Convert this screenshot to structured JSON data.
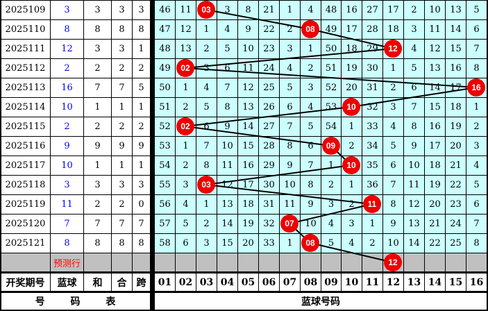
{
  "colors": {
    "grid_cell_bg": "#ccffff",
    "prediction_row_bg": "#c0c0c0",
    "ball_fill": "#ee0000",
    "ball_text": "#ffffff",
    "blue_value_text": "#0000ff",
    "prediction_label_text": "#ff0000",
    "trend_line": "#000000",
    "border": "#000000"
  },
  "left_table": {
    "headers": [
      "开奖期号",
      "蓝球",
      "和",
      "合",
      "跨"
    ],
    "footer_label": "号 码 表",
    "prediction_label": "预测行",
    "rows": [
      {
        "period": "2025109",
        "blue": "3",
        "he": "3",
        "hezhi": "3",
        "kua": "3"
      },
      {
        "period": "2025110",
        "blue": "8",
        "he": "8",
        "hezhi": "8",
        "kua": "8"
      },
      {
        "period": "2025111",
        "blue": "12",
        "he": "3",
        "hezhi": "3",
        "kua": "1"
      },
      {
        "period": "2025112",
        "blue": "2",
        "he": "2",
        "hezhi": "2",
        "kua": "2"
      },
      {
        "period": "2025113",
        "blue": "16",
        "he": "7",
        "hezhi": "7",
        "kua": "5"
      },
      {
        "period": "2025114",
        "blue": "10",
        "he": "1",
        "hezhi": "1",
        "kua": "1"
      },
      {
        "period": "2025115",
        "blue": "2",
        "he": "2",
        "hezhi": "2",
        "kua": "2"
      },
      {
        "period": "2025116",
        "blue": "9",
        "he": "9",
        "hezhi": "9",
        "kua": "9"
      },
      {
        "period": "2025117",
        "blue": "10",
        "he": "1",
        "hezhi": "1",
        "kua": "1"
      },
      {
        "period": "2025118",
        "blue": "3",
        "he": "3",
        "hezhi": "3",
        "kua": "3"
      },
      {
        "period": "2025119",
        "blue": "11",
        "he": "2",
        "hezhi": "2",
        "kua": "0"
      },
      {
        "period": "2025120",
        "blue": "7",
        "he": "7",
        "hezhi": "7",
        "kua": "7"
      },
      {
        "period": "2025121",
        "blue": "8",
        "he": "8",
        "hezhi": "8",
        "kua": "8"
      }
    ]
  },
  "ball_grid": {
    "headers": [
      "01",
      "02",
      "03",
      "04",
      "05",
      "06",
      "07",
      "08",
      "09",
      "10",
      "11",
      "12",
      "13",
      "14",
      "15",
      "16"
    ],
    "footer_label": "蓝球号码",
    "rows": [
      {
        "cells": [
          "46",
          "11",
          "",
          "3",
          "8",
          "21",
          "1",
          "4",
          "48",
          "16",
          "27",
          "17",
          "2",
          "10",
          "13",
          "5"
        ],
        "ball_col": 3,
        "ball_label": "03"
      },
      {
        "cells": [
          "47",
          "12",
          "1",
          "4",
          "9",
          "22",
          "2",
          "",
          "49",
          "17",
          "28",
          "18",
          "3",
          "11",
          "14",
          "6"
        ],
        "ball_col": 8,
        "ball_label": "08"
      },
      {
        "cells": [
          "48",
          "13",
          "2",
          "5",
          "10",
          "23",
          "3",
          "1",
          "50",
          "18",
          "29",
          "",
          "4",
          "12",
          "15",
          "7"
        ],
        "ball_col": 12,
        "ball_label": "12"
      },
      {
        "cells": [
          "49",
          "",
          "3",
          "6",
          "11",
          "24",
          "4",
          "2",
          "51",
          "19",
          "30",
          "1",
          "5",
          "13",
          "16",
          "8"
        ],
        "ball_col": 2,
        "ball_label": "02"
      },
      {
        "cells": [
          "50",
          "1",
          "4",
          "7",
          "12",
          "25",
          "5",
          "3",
          "52",
          "20",
          "31",
          "2",
          "6",
          "14",
          "17",
          ""
        ],
        "ball_col": 16,
        "ball_label": "16"
      },
      {
        "cells": [
          "51",
          "2",
          "5",
          "8",
          "13",
          "26",
          "6",
          "4",
          "53",
          "",
          "32",
          "3",
          "7",
          "15",
          "18",
          "1"
        ],
        "ball_col": 10,
        "ball_label": "10"
      },
      {
        "cells": [
          "52",
          "",
          "6",
          "9",
          "14",
          "27",
          "7",
          "5",
          "54",
          "1",
          "33",
          "4",
          "8",
          "16",
          "19",
          "2"
        ],
        "ball_col": 2,
        "ball_label": "02"
      },
      {
        "cells": [
          "53",
          "1",
          "7",
          "10",
          "15",
          "28",
          "8",
          "6",
          "",
          "2",
          "34",
          "5",
          "9",
          "17",
          "20",
          "3"
        ],
        "ball_col": 9,
        "ball_label": "09"
      },
      {
        "cells": [
          "54",
          "2",
          "8",
          "11",
          "16",
          "29",
          "9",
          "7",
          "1",
          "",
          "35",
          "6",
          "10",
          "18",
          "21",
          "4"
        ],
        "ball_col": 10,
        "ball_label": "10"
      },
      {
        "cells": [
          "55",
          "3",
          "",
          "12",
          "17",
          "30",
          "10",
          "8",
          "2",
          "1",
          "36",
          "7",
          "11",
          "19",
          "22",
          "5"
        ],
        "ball_col": 3,
        "ball_label": "03"
      },
      {
        "cells": [
          "56",
          "4",
          "1",
          "13",
          "18",
          "31",
          "11",
          "9",
          "3",
          "2",
          "",
          "8",
          "12",
          "20",
          "23",
          "6"
        ],
        "ball_col": 11,
        "ball_label": "11"
      },
      {
        "cells": [
          "57",
          "5",
          "2",
          "14",
          "19",
          "32",
          "",
          "10",
          "4",
          "3",
          "1",
          "9",
          "13",
          "21",
          "24",
          "7"
        ],
        "ball_col": 7,
        "ball_label": "07"
      },
      {
        "cells": [
          "58",
          "6",
          "3",
          "15",
          "20",
          "33",
          "1",
          "",
          "5",
          "4",
          "2",
          "10",
          "14",
          "22",
          "25",
          "8"
        ],
        "ball_col": 8,
        "ball_label": "08"
      }
    ],
    "prediction_row": {
      "cells": [
        "",
        "",
        "",
        "",
        "",
        "",
        "",
        "",
        "",
        "",
        "",
        "",
        "",
        "",
        "",
        ""
      ],
      "ball_col": 12,
      "ball_label": "12"
    }
  },
  "chart_data": {
    "type": "table",
    "title": "蓝球号码走势 (号 码 表)",
    "categories": [
      "2025109",
      "2025110",
      "2025111",
      "2025112",
      "2025113",
      "2025114",
      "2025115",
      "2025116",
      "2025117",
      "2025118",
      "2025119",
      "2025120",
      "2025121"
    ],
    "series": [
      {
        "name": "蓝球",
        "values": [
          3,
          8,
          12,
          2,
          16,
          10,
          2,
          9,
          10,
          3,
          11,
          7,
          8
        ]
      },
      {
        "name": "和",
        "values": [
          3,
          8,
          3,
          2,
          7,
          1,
          2,
          9,
          1,
          3,
          2,
          7,
          8
        ]
      },
      {
        "name": "合",
        "values": [
          3,
          8,
          3,
          2,
          7,
          1,
          2,
          9,
          1,
          3,
          2,
          7,
          8
        ]
      },
      {
        "name": "跨",
        "values": [
          3,
          8,
          1,
          2,
          5,
          1,
          2,
          9,
          1,
          3,
          0,
          7,
          8
        ]
      }
    ],
    "prediction": {
      "label": "预测行",
      "value": 12
    },
    "x_range": [
      1,
      16
    ],
    "legend_position": "none",
    "grid": true
  }
}
